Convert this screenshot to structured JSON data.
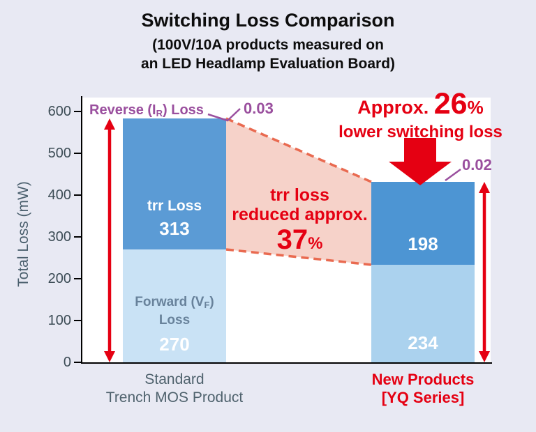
{
  "title": {
    "main": "Switching Loss Comparison",
    "sub1": "(100V/10A products measured on",
    "sub2": "an LED Headlamp Evaluation Board)"
  },
  "y_axis": {
    "label": "Total Loss (mW)",
    "ticks": [
      "600",
      "500",
      "400",
      "300",
      "200",
      "100",
      "0"
    ]
  },
  "chart_data": {
    "type": "bar",
    "stacked": true,
    "title": "Switching Loss Comparison",
    "subtitle": "(100V/10A products measured on an LED Headlamp Evaluation Board)",
    "ylabel": "Total Loss (mW)",
    "ylim": [
      0,
      600
    ],
    "categories": [
      "Standard Trench MOS Product",
      "New Products [YQ Series]"
    ],
    "series": [
      {
        "name": "Forward (VF) Loss",
        "values": [
          270,
          234
        ],
        "colors": [
          "#c9e2f5",
          "#abd2ee"
        ]
      },
      {
        "name": "trr Loss",
        "values": [
          313,
          198
        ],
        "colors": [
          "#5b9bd5",
          "#4d95d3"
        ]
      },
      {
        "name": "Reverse (IR) Loss",
        "values": [
          0.03,
          0.02
        ]
      }
    ],
    "totals": [
      583,
      432
    ],
    "annotations": {
      "trr_reduction_pct": 37,
      "total_reduction_pct": 26
    }
  },
  "bars": {
    "bar1": {
      "trr_label": "trr Loss",
      "trr_value": "313",
      "fwd_pre": "Forward (V",
      "fwd_sub": "F",
      "fwd_post": ")",
      "fwd_line2": "Loss",
      "fwd_value": "270",
      "x_line1": "Standard",
      "x_line2": "Trench MOS Product"
    },
    "bar2": {
      "trr_value": "198",
      "fwd_value": "234",
      "x_line1": "New Products",
      "x_line2": "[YQ Series]"
    }
  },
  "annotations": {
    "reverse": {
      "pre": "Reverse (I",
      "sub": "R",
      "post": ") Loss",
      "value1": "0.03",
      "value2": "0.02"
    },
    "headline": {
      "pre": "Approx. ",
      "big": "26",
      "pct": "%",
      "line2": "lower switching loss"
    },
    "trr_note": {
      "line1": "trr loss",
      "line2": "reduced approx.",
      "big": "37",
      "pct": "%"
    }
  },
  "colors": {
    "red": "#e50012",
    "purple": "#9a4f9e",
    "dashed_line": "#e96a50",
    "pink_band": "#f6d2c9",
    "trr_blue": "#5b9bd5",
    "forward_blue": "#c9e2f5",
    "background": "#e8e9f3"
  }
}
